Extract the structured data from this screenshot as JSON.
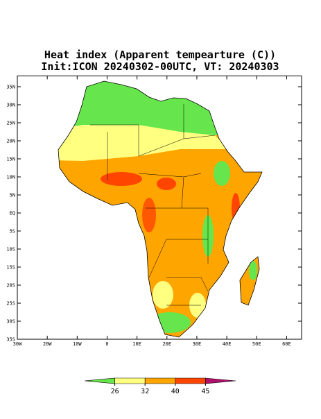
{
  "title": "Heat index (Apparent tempearture (C))",
  "subtitle": "Init:ICON 20240302-00UTC, VT: 20240303",
  "map": {
    "xlim": [
      -30,
      65
    ],
    "ylim": [
      -35,
      38
    ],
    "xticks": [
      {
        "value": -30,
        "label": "30W"
      },
      {
        "value": -20,
        "label": "20W"
      },
      {
        "value": -10,
        "label": "10W"
      },
      0,
      {
        "value": 10,
        "label": "10E"
      },
      {
        "value": 20,
        "label": "20E"
      },
      {
        "value": 30,
        "label": "30E"
      },
      {
        "value": 40,
        "label": "40E"
      },
      {
        "value": 50,
        "label": "50E"
      },
      {
        "value": 60,
        "label": "60E"
      }
    ],
    "yticks": [
      {
        "value": -35,
        "label": "35S"
      },
      {
        "value": -30,
        "label": "30S"
      },
      {
        "value": -25,
        "label": "25S"
      },
      {
        "value": -20,
        "label": "20S"
      },
      {
        "value": -15,
        "label": "15S"
      },
      {
        "value": -10,
        "label": "10S"
      },
      {
        "value": -5,
        "label": "5S"
      },
      {
        "value": 0,
        "label": "EQ"
      },
      {
        "value": 5,
        "label": "5N"
      },
      {
        "value": 10,
        "label": "10N"
      },
      {
        "value": 15,
        "label": "15N"
      },
      {
        "value": 20,
        "label": "20N"
      },
      {
        "value": 25,
        "label": "25N"
      },
      {
        "value": 30,
        "label": "30N"
      },
      {
        "value": 35,
        "label": "35N"
      }
    ]
  },
  "colorbar": {
    "colors": [
      "#66e64c",
      "#ffff80",
      "#ffa500",
      "#ff4500",
      "#b0106a"
    ],
    "ticks": [
      26,
      32,
      40,
      45
    ]
  }
}
